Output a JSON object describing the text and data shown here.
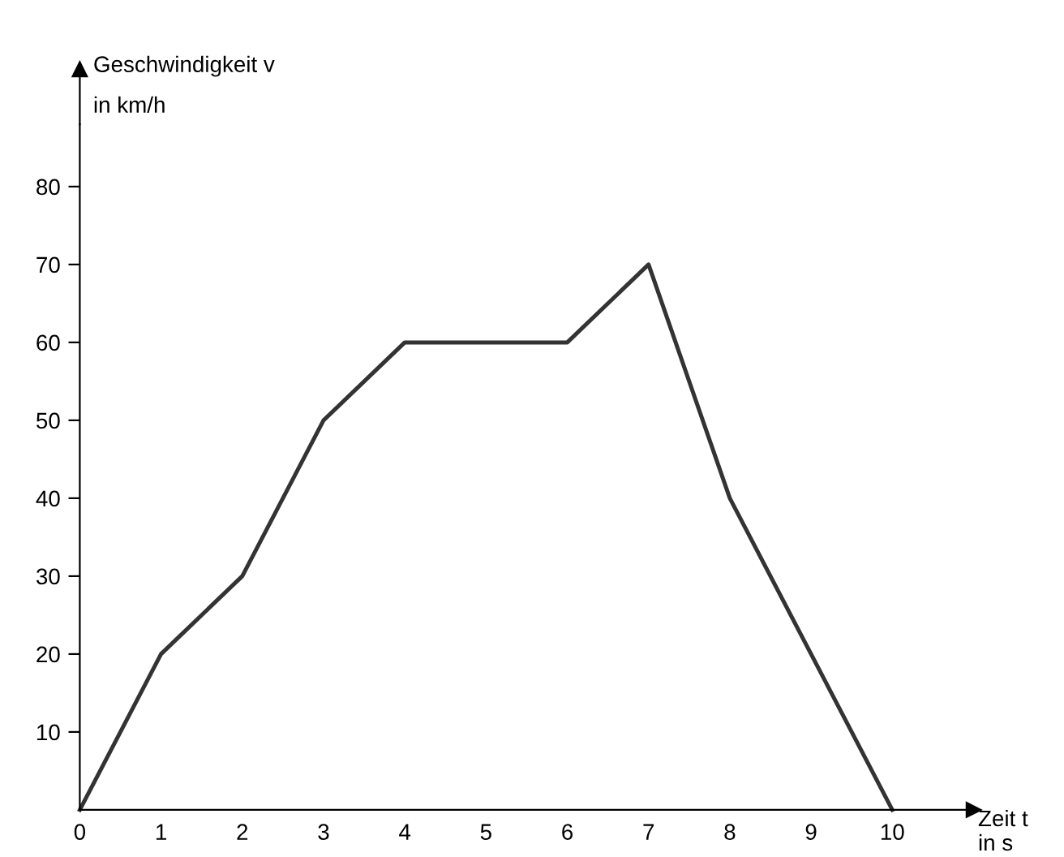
{
  "chart_data": {
    "type": "line",
    "xlabel": "Zeit t\nin s",
    "ylabel": "Geschwindigkeit v\nin km/h",
    "x": [
      0,
      1,
      2,
      3,
      4,
      5,
      6,
      7,
      8,
      9,
      10
    ],
    "series": [
      {
        "color": "#333333",
        "values": [
          0,
          20,
          30,
          50,
          60,
          60,
          60,
          70,
          40,
          20,
          0
        ]
      }
    ],
    "xlim": [
      0,
      11
    ],
    "ylim": [
      0,
      88
    ],
    "xticks": [
      0,
      1,
      2,
      3,
      4,
      5,
      6,
      7,
      8,
      9,
      10
    ],
    "yticks": [
      10,
      20,
      30,
      40,
      50,
      60,
      70,
      80
    ],
    "grid": false,
    "legend": false,
    "marker": "none",
    "line_style": "solid"
  }
}
